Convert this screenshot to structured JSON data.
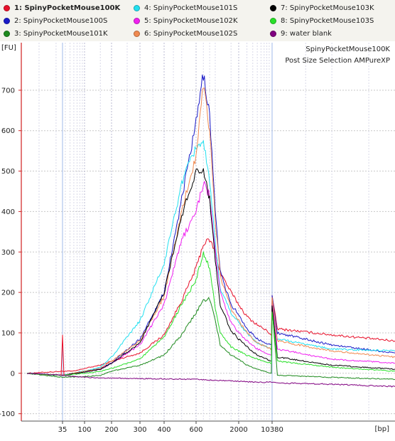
{
  "legend": [
    {
      "label": "1: SpinyPocketMouse100K",
      "color": "#e8102a",
      "bold": true
    },
    {
      "label": "2: SpinyPocketMouse100S",
      "color": "#1a1ac8"
    },
    {
      "label": "3: SpinyPocketMouse101K",
      "color": "#1e8a1e"
    },
    {
      "label": "4: SpinyPocketMouse101S",
      "color": "#22e0f0"
    },
    {
      "label": "5: SpinyPocketMouse102K",
      "color": "#f020f0"
    },
    {
      "label": "6: SpinyPocketMouse102S",
      "color": "#f08a50"
    },
    {
      "label": "7: SpinyPocketMouse103K",
      "color": "#000000"
    },
    {
      "label": "8: SpinyPocketMouse103S",
      "color": "#28e028"
    },
    {
      "label": "9: water blank",
      "color": "#800080"
    }
  ],
  "chart_data": {
    "type": "line",
    "title": "SpinyPocketMouse100K",
    "subtitle": "Post Size Selection AMPureXP",
    "ylabel": "[FU]",
    "xlabel": "[bp]",
    "xscale": "log-like (electropherogram)",
    "ylim": [
      -110,
      780
    ],
    "y_ticks": [
      -100,
      0,
      100,
      200,
      300,
      400,
      500,
      600,
      700
    ],
    "x_ticks": [
      "35",
      "100",
      "200",
      "300",
      "400",
      "600",
      "2000",
      "10380"
    ],
    "grid": true,
    "marker_peaks_bp": [
      35,
      10380
    ],
    "series": [
      {
        "name": "1: SpinyPocketMouse100K",
        "color": "#e8102a",
        "points": [
          [
            15,
            0
          ],
          [
            35,
            5
          ],
          [
            60,
            5
          ],
          [
            100,
            12
          ],
          [
            150,
            20
          ],
          [
            200,
            30
          ],
          [
            300,
            50
          ],
          [
            400,
            95
          ],
          [
            500,
            180
          ],
          [
            600,
            260
          ],
          [
            700,
            320
          ],
          [
            800,
            330
          ],
          [
            900,
            300
          ],
          [
            1000,
            250
          ],
          [
            1500,
            200
          ],
          [
            2000,
            170
          ],
          [
            3000,
            140
          ],
          [
            5000,
            120
          ],
          [
            8000,
            105
          ],
          [
            10000,
            95
          ],
          [
            10380,
            190
          ],
          [
            11000,
            110
          ],
          [
            20000,
            95
          ],
          [
            40000,
            80
          ]
        ]
      },
      {
        "name": "2: SpinyPocketMouse100S",
        "color": "#1a1ac8",
        "points": [
          [
            15,
            0
          ],
          [
            35,
            -5
          ],
          [
            100,
            5
          ],
          [
            150,
            12
          ],
          [
            200,
            25
          ],
          [
            300,
            85
          ],
          [
            400,
            200
          ],
          [
            500,
            430
          ],
          [
            600,
            620
          ],
          [
            700,
            740
          ],
          [
            800,
            640
          ],
          [
            900,
            400
          ],
          [
            1000,
            250
          ],
          [
            1500,
            170
          ],
          [
            2000,
            145
          ],
          [
            3000,
            110
          ],
          [
            5000,
            85
          ],
          [
            10000,
            70
          ],
          [
            10380,
            190
          ],
          [
            11000,
            100
          ],
          [
            20000,
            70
          ],
          [
            40000,
            50
          ]
        ]
      },
      {
        "name": "3: SpinyPocketMouse101K",
        "color": "#1e8a1e",
        "points": [
          [
            15,
            0
          ],
          [
            35,
            -10
          ],
          [
            100,
            -8
          ],
          [
            150,
            -5
          ],
          [
            200,
            5
          ],
          [
            300,
            20
          ],
          [
            400,
            45
          ],
          [
            500,
            95
          ],
          [
            600,
            150
          ],
          [
            700,
            180
          ],
          [
            800,
            185
          ],
          [
            900,
            130
          ],
          [
            1000,
            70
          ],
          [
            1500,
            45
          ],
          [
            2000,
            35
          ],
          [
            3000,
            20
          ],
          [
            5000,
            10
          ],
          [
            10000,
            0
          ],
          [
            10380,
            160
          ],
          [
            11000,
            -5
          ],
          [
            20000,
            -10
          ],
          [
            40000,
            -15
          ]
        ]
      },
      {
        "name": "4: SpinyPocketMouse101S",
        "color": "#22e0f0",
        "points": [
          [
            15,
            0
          ],
          [
            35,
            -5
          ],
          [
            100,
            5
          ],
          [
            150,
            15
          ],
          [
            200,
            40
          ],
          [
            300,
            130
          ],
          [
            400,
            270
          ],
          [
            500,
            470
          ],
          [
            600,
            560
          ],
          [
            700,
            575
          ],
          [
            800,
            470
          ],
          [
            900,
            320
          ],
          [
            1000,
            210
          ],
          [
            1500,
            150
          ],
          [
            2000,
            125
          ],
          [
            3000,
            100
          ],
          [
            5000,
            75
          ],
          [
            10000,
            60
          ],
          [
            10380,
            170
          ],
          [
            11000,
            85
          ],
          [
            20000,
            60
          ],
          [
            40000,
            55
          ]
        ]
      },
      {
        "name": "5: SpinyPocketMouse102K",
        "color": "#f020f0",
        "points": [
          [
            15,
            0
          ],
          [
            35,
            -5
          ],
          [
            100,
            3
          ],
          [
            150,
            10
          ],
          [
            200,
            25
          ],
          [
            300,
            70
          ],
          [
            400,
            170
          ],
          [
            500,
            330
          ],
          [
            600,
            400
          ],
          [
            700,
            470
          ],
          [
            800,
            440
          ],
          [
            900,
            300
          ],
          [
            1000,
            200
          ],
          [
            1500,
            125
          ],
          [
            2000,
            100
          ],
          [
            3000,
            80
          ],
          [
            5000,
            60
          ],
          [
            10000,
            45
          ],
          [
            10380,
            180
          ],
          [
            11000,
            60
          ],
          [
            20000,
            35
          ],
          [
            40000,
            25
          ]
        ]
      },
      {
        "name": "6: SpinyPocketMouse102S",
        "color": "#f08a50",
        "points": [
          [
            15,
            0
          ],
          [
            35,
            -5
          ],
          [
            100,
            5
          ],
          [
            150,
            12
          ],
          [
            200,
            30
          ],
          [
            300,
            80
          ],
          [
            400,
            190
          ],
          [
            500,
            400
          ],
          [
            600,
            540
          ],
          [
            700,
            720
          ],
          [
            800,
            600
          ],
          [
            900,
            380
          ],
          [
            1000,
            240
          ],
          [
            1500,
            160
          ],
          [
            2000,
            130
          ],
          [
            3000,
            100
          ],
          [
            5000,
            75
          ],
          [
            10000,
            60
          ],
          [
            10380,
            185
          ],
          [
            11000,
            80
          ],
          [
            20000,
            55
          ],
          [
            40000,
            40
          ]
        ]
      },
      {
        "name": "7: SpinyPocketMouse103K",
        "color": "#000000",
        "points": [
          [
            15,
            0
          ],
          [
            35,
            -5
          ],
          [
            100,
            3
          ],
          [
            150,
            10
          ],
          [
            200,
            25
          ],
          [
            300,
            75
          ],
          [
            400,
            200
          ],
          [
            500,
            390
          ],
          [
            600,
            500
          ],
          [
            700,
            500
          ],
          [
            800,
            430
          ],
          [
            900,
            280
          ],
          [
            1000,
            170
          ],
          [
            1500,
            105
          ],
          [
            2000,
            85
          ],
          [
            3000,
            65
          ],
          [
            5000,
            45
          ],
          [
            10000,
            30
          ],
          [
            10380,
            165
          ],
          [
            11000,
            40
          ],
          [
            20000,
            20
          ],
          [
            40000,
            10
          ]
        ]
      },
      {
        "name": "8: SpinyPocketMouse103S",
        "color": "#28e028",
        "points": [
          [
            15,
            0
          ],
          [
            35,
            -5
          ],
          [
            100,
            0
          ],
          [
            150,
            5
          ],
          [
            200,
            12
          ],
          [
            300,
            35
          ],
          [
            400,
            90
          ],
          [
            500,
            170
          ],
          [
            600,
            230
          ],
          [
            700,
            300
          ],
          [
            800,
            260
          ],
          [
            900,
            160
          ],
          [
            1000,
            100
          ],
          [
            1500,
            65
          ],
          [
            2000,
            55
          ],
          [
            3000,
            45
          ],
          [
            5000,
            35
          ],
          [
            10000,
            25
          ],
          [
            10380,
            150
          ],
          [
            11000,
            30
          ],
          [
            20000,
            15
          ],
          [
            40000,
            5
          ]
        ]
      },
      {
        "name": "9: water blank",
        "color": "#800080",
        "points": [
          [
            15,
            0
          ],
          [
            35,
            -5
          ],
          [
            100,
            -10
          ],
          [
            200,
            -12
          ],
          [
            300,
            -13
          ],
          [
            600,
            -15
          ],
          [
            1000,
            -18
          ],
          [
            2000,
            -20
          ],
          [
            5000,
            -22
          ],
          [
            10380,
            -22
          ],
          [
            11000,
            -24
          ],
          [
            20000,
            -27
          ],
          [
            40000,
            -33
          ]
        ]
      }
    ]
  }
}
